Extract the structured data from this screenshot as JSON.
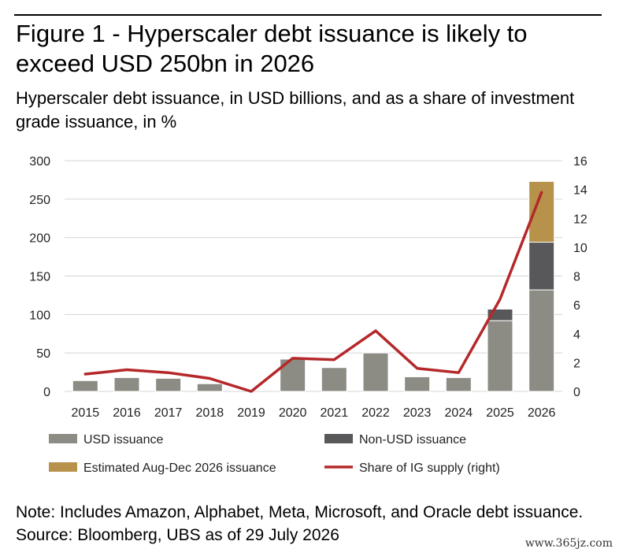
{
  "header": {
    "title": "Figure 1 - Hyperscaler debt issuance is likely to exceed USD 250bn in 2026",
    "subtitle": "Hyperscaler debt issuance, in USD billions, and as a share of investment grade issuance, in %"
  },
  "chart_data": {
    "type": "bar",
    "stacked": true,
    "categories": [
      "2015",
      "2016",
      "2017",
      "2018",
      "2019",
      "2020",
      "2021",
      "2022",
      "2023",
      "2024",
      "2025",
      "2026"
    ],
    "series": [
      {
        "name": "USD issuance",
        "type": "bar",
        "axis": "left",
        "color": "#8c8c84",
        "values": [
          14,
          18,
          17,
          10,
          0,
          42,
          31,
          50,
          19,
          18,
          92,
          132
        ]
      },
      {
        "name": "Non-USD issuance",
        "type": "bar",
        "axis": "left",
        "color": "#58585a",
        "values": [
          0,
          0,
          0,
          0,
          0,
          0,
          0,
          0,
          0,
          0,
          15,
          62
        ]
      },
      {
        "name": "Estimated Aug-Dec 2026 issuance",
        "type": "bar",
        "axis": "left",
        "color": "#b7924a",
        "values": [
          0,
          0,
          0,
          0,
          0,
          0,
          0,
          0,
          0,
          0,
          0,
          79
        ]
      },
      {
        "name": "Share of IG supply (right)",
        "type": "line",
        "axis": "right",
        "color": "#b5282a",
        "values": [
          1.2,
          1.5,
          1.3,
          0.9,
          0.0,
          2.3,
          2.2,
          4.2,
          1.6,
          1.3,
          6.4,
          13.8
        ]
      }
    ],
    "y_left": {
      "min": 0,
      "max": 300,
      "ticks": [
        "0",
        "50",
        "100",
        "150",
        "200",
        "250",
        "300"
      ]
    },
    "y_right": {
      "min": 0,
      "max": 16,
      "ticks": [
        "0",
        "2",
        "4",
        "6",
        "8",
        "10",
        "12",
        "14",
        "16"
      ]
    },
    "grid": true,
    "legend_position": "bottom"
  },
  "footer": {
    "note": "Note: Includes Amazon, Alphabet, Meta, Microsoft, and Oracle debt issuance. Source: Bloomberg, UBS as of 29 July 2026",
    "watermark": "www.365jz.com"
  }
}
